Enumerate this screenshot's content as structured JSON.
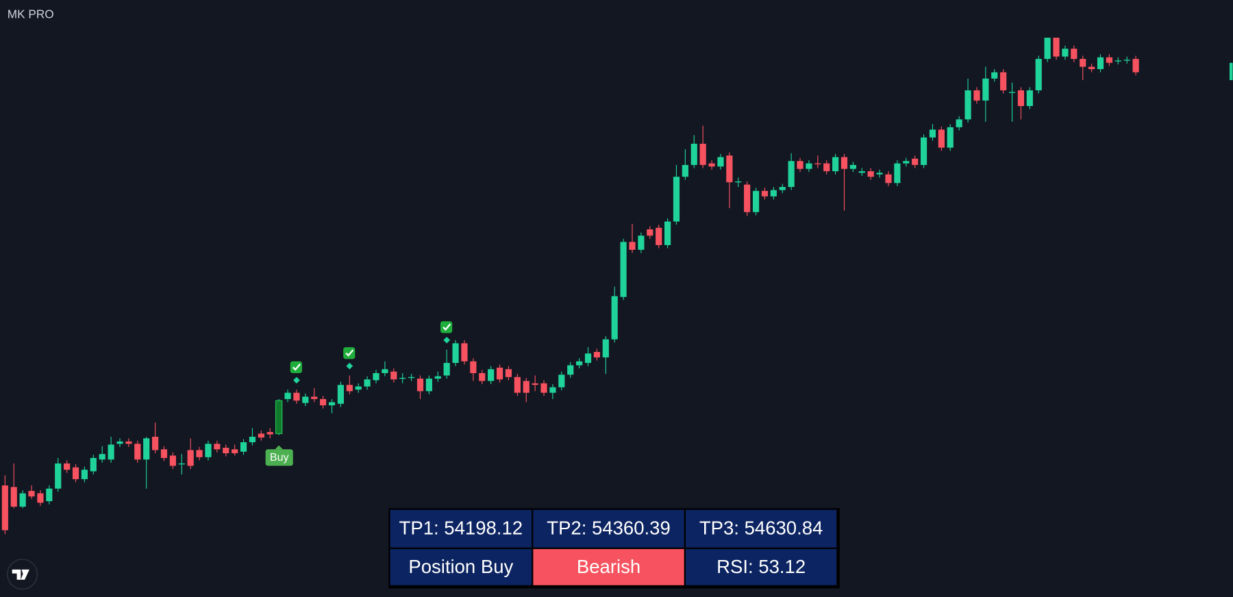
{
  "chart_data": {
    "type": "candlestick",
    "title": "MK PRO",
    "signal_label": "Buy",
    "up_color": "#1fd39a",
    "down_color": "#f7525f",
    "ylim": [
      0,
      760
    ],
    "candles": [
      [
        142,
        155,
        80,
        85
      ],
      [
        140,
        170,
        113,
        115
      ],
      [
        115,
        136,
        113,
        132
      ],
      [
        135,
        142,
        125,
        128
      ],
      [
        132,
        136,
        116,
        120
      ],
      [
        122,
        142,
        118,
        138
      ],
      [
        138,
        177,
        134,
        170
      ],
      [
        170,
        174,
        158,
        162
      ],
      [
        165,
        169,
        146,
        150
      ],
      [
        150,
        166,
        146,
        162
      ],
      [
        160,
        181,
        156,
        177
      ],
      [
        175,
        192,
        171,
        182
      ],
      [
        175,
        204,
        171,
        194
      ],
      [
        195,
        202,
        191,
        198
      ],
      [
        198,
        202,
        191,
        195
      ],
      [
        195,
        199,
        171,
        175
      ],
      [
        175,
        204,
        138,
        202
      ],
      [
        204,
        222,
        183,
        187
      ],
      [
        188,
        192,
        173,
        177
      ],
      [
        180,
        184,
        163,
        167
      ],
      [
        169,
        182,
        156,
        170
      ],
      [
        187,
        202,
        163,
        167
      ],
      [
        187,
        191,
        174,
        178
      ],
      [
        178,
        199,
        174,
        195
      ],
      [
        195,
        199,
        184,
        188
      ],
      [
        190,
        194,
        179,
        183
      ],
      [
        188,
        194,
        180,
        183
      ],
      [
        185,
        201,
        181,
        197
      ],
      [
        197,
        215,
        193,
        204
      ],
      [
        208,
        212,
        199,
        203
      ],
      [
        210,
        215,
        202,
        207
      ],
      [
        208,
        252,
        206,
        250
      ],
      [
        252,
        264,
        248,
        260
      ],
      [
        260,
        264,
        246,
        250
      ],
      [
        247,
        259,
        243,
        255
      ],
      [
        255,
        266,
        248,
        252
      ],
      [
        252,
        256,
        240,
        244
      ],
      [
        244,
        252,
        234,
        248
      ],
      [
        246,
        274,
        242,
        270
      ],
      [
        270,
        282,
        258,
        262
      ],
      [
        264,
        272,
        260,
        268
      ],
      [
        268,
        281,
        264,
        277
      ],
      [
        276,
        289,
        272,
        285
      ],
      [
        285,
        300,
        281,
        290
      ],
      [
        287,
        291,
        273,
        277
      ],
      [
        278,
        285,
        272,
        279
      ],
      [
        279,
        284,
        275,
        280
      ],
      [
        278,
        282,
        252,
        262
      ],
      [
        262,
        282,
        258,
        278
      ],
      [
        278,
        287,
        274,
        281
      ],
      [
        282,
        315,
        278,
        298
      ],
      [
        298,
        327,
        294,
        323
      ],
      [
        323,
        327,
        296,
        300
      ],
      [
        300,
        304,
        275,
        285
      ],
      [
        285,
        289,
        271,
        275
      ],
      [
        275,
        294,
        271,
        290
      ],
      [
        292,
        296,
        273,
        277
      ],
      [
        290,
        294,
        276,
        280
      ],
      [
        280,
        284,
        256,
        260
      ],
      [
        275,
        279,
        248,
        260
      ],
      [
        272,
        282,
        262,
        270
      ],
      [
        272,
        276,
        256,
        260
      ],
      [
        260,
        271,
        252,
        267
      ],
      [
        267,
        287,
        263,
        283
      ],
      [
        283,
        299,
        279,
        295
      ],
      [
        295,
        304,
        291,
        300
      ],
      [
        298,
        318,
        294,
        310
      ],
      [
        312,
        316,
        301,
        305
      ],
      [
        305,
        332,
        284,
        328
      ],
      [
        328,
        395,
        324,
        383
      ],
      [
        382,
        456,
        378,
        452
      ],
      [
        452,
        475,
        438,
        442
      ],
      [
        442,
        464,
        438,
        460
      ],
      [
        468,
        472,
        456,
        460
      ],
      [
        470,
        474,
        444,
        448
      ],
      [
        448,
        482,
        444,
        478
      ],
      [
        478,
        550,
        474,
        535
      ],
      [
        535,
        570,
        531,
        550
      ],
      [
        550,
        588,
        546,
        577
      ],
      [
        577,
        600,
        546,
        550
      ],
      [
        552,
        556,
        544,
        548
      ],
      [
        548,
        564,
        544,
        560
      ],
      [
        562,
        566,
        495,
        528
      ],
      [
        528,
        534,
        522,
        529
      ],
      [
        525,
        529,
        485,
        490
      ],
      [
        490,
        521,
        486,
        517
      ],
      [
        517,
        521,
        506,
        510
      ],
      [
        510,
        522,
        506,
        518
      ],
      [
        518,
        526,
        514,
        522
      ],
      [
        522,
        565,
        518,
        555
      ],
      [
        555,
        559,
        541,
        545
      ],
      [
        545,
        556,
        541,
        552
      ],
      [
        552,
        562,
        546,
        551
      ],
      [
        552,
        556,
        538,
        542
      ],
      [
        542,
        564,
        538,
        560
      ],
      [
        560,
        564,
        492,
        545
      ],
      [
        545,
        554,
        541,
        550
      ],
      [
        540,
        546,
        536,
        542
      ],
      [
        542,
        546,
        531,
        535
      ],
      [
        538,
        544,
        534,
        540
      ],
      [
        538,
        542,
        523,
        527
      ],
      [
        527,
        556,
        523,
        552
      ],
      [
        552,
        559,
        548,
        555
      ],
      [
        558,
        562,
        546,
        550
      ],
      [
        550,
        589,
        546,
        585
      ],
      [
        585,
        602,
        581,
        595
      ],
      [
        595,
        599,
        568,
        572
      ],
      [
        572,
        602,
        568,
        598
      ],
      [
        598,
        612,
        594,
        608
      ],
      [
        608,
        660,
        604,
        645
      ],
      [
        645,
        649,
        628,
        632
      ],
      [
        632,
        675,
        605,
        660
      ],
      [
        660,
        672,
        656,
        668
      ],
      [
        668,
        672,
        641,
        645
      ],
      [
        642,
        655,
        605,
        643
      ],
      [
        645,
        649,
        608,
        625
      ],
      [
        625,
        649,
        621,
        645
      ],
      [
        645,
        689,
        641,
        685
      ],
      [
        685,
        712,
        681,
        712
      ],
      [
        712,
        712,
        684,
        688
      ],
      [
        688,
        702,
        684,
        698
      ],
      [
        698,
        702,
        681,
        685
      ],
      [
        685,
        689,
        658,
        675
      ],
      [
        675,
        679,
        668,
        672
      ],
      [
        672,
        691,
        668,
        687
      ],
      [
        687,
        691,
        676,
        680
      ],
      [
        682,
        687,
        678,
        683
      ],
      [
        683,
        688,
        679,
        684
      ],
      [
        685,
        689,
        664,
        668
      ]
    ]
  },
  "table": {
    "rows": [
      [
        "TP1: 54198.12",
        "TP2: 54360.39",
        "TP3: 54630.84"
      ],
      [
        "Position Buy",
        "Bearish",
        "RSI: 53.12"
      ]
    ]
  }
}
